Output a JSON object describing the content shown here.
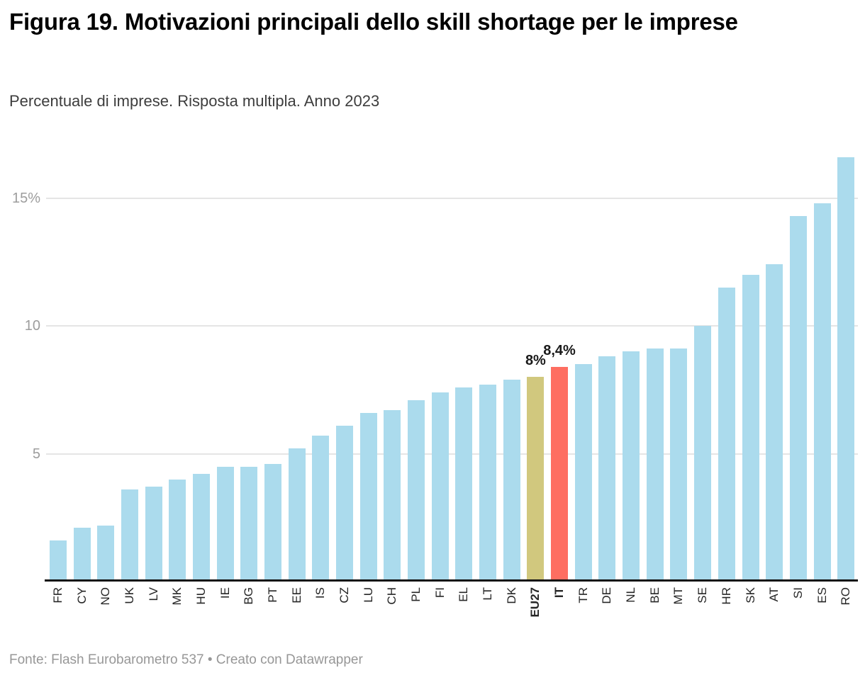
{
  "chart_data": {
    "type": "bar",
    "title": "Figura 19. Motivazioni principali dello skill shortage per le imprese",
    "subtitle": "Percentuale di imprese. Risposta multipla. Anno 2023",
    "source_note": "Fonte: Flash Eurobarometro 537 • Creato con Datawrapper",
    "categories": [
      "FR",
      "CY",
      "NO",
      "UK",
      "LV",
      "MK",
      "HU",
      "IE",
      "BG",
      "PT",
      "EE",
      "IS",
      "CZ",
      "LU",
      "CH",
      "PL",
      "FI",
      "EL",
      "LT",
      "DK",
      "EU27",
      "IT",
      "TR",
      "DE",
      "NL",
      "BE",
      "MT",
      "SE",
      "HR",
      "SK",
      "AT",
      "SI",
      "ES",
      "RO"
    ],
    "values": [
      1.6,
      2.1,
      2.2,
      3.6,
      3.7,
      4.0,
      4.2,
      4.5,
      4.5,
      4.6,
      5.2,
      5.7,
      6.1,
      6.6,
      6.7,
      7.1,
      7.4,
      7.6,
      7.7,
      7.9,
      8.0,
      8.4,
      8.5,
      8.8,
      9.0,
      9.1,
      9.1,
      10.0,
      11.5,
      12.0,
      12.4,
      14.3,
      14.8,
      16.6
    ],
    "unit": "%",
    "ylim": [
      0,
      17
    ],
    "yticks": [
      {
        "value": 5,
        "label": "5"
      },
      {
        "value": 10,
        "label": "10"
      },
      {
        "value": 15,
        "label": "15%"
      }
    ],
    "grid": "horizontal-only",
    "legend": "none",
    "x_label_rotation": -90,
    "bar_color_default": "#abdbed",
    "highlighted_bars": [
      {
        "category": "EU27",
        "color": "#d1c87e",
        "value_label": "8%",
        "bold_axis_label": true
      },
      {
        "category": "IT",
        "color": "#fe6e61",
        "value_label": "8,4%",
        "bold_axis_label": true
      }
    ],
    "value_label_color": "#1a1a1a",
    "gridline_color": "#e5e5e5",
    "axis_color": "#131313",
    "ytick_color": "#9d9d9d",
    "xtick_color": "#262626"
  }
}
